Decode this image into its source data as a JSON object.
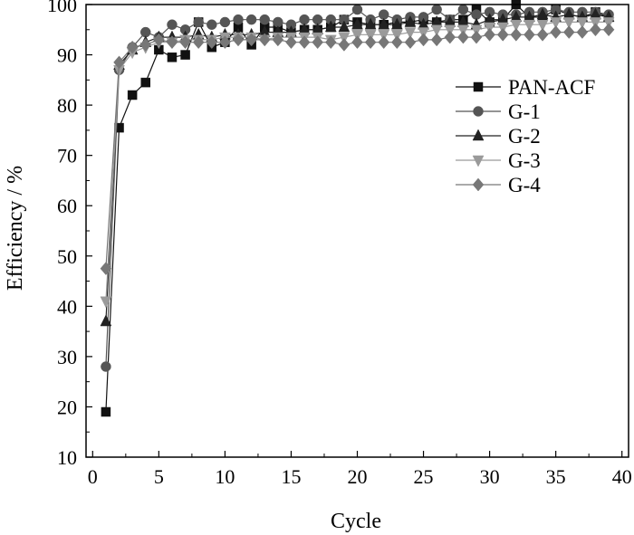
{
  "chart_data": {
    "type": "line",
    "title": "",
    "xlabel": "Cycle",
    "ylabel": "Efficiency / %",
    "xlim": [
      -0.5,
      40.5
    ],
    "ylim": [
      10,
      100
    ],
    "xticks": [
      0,
      5,
      10,
      15,
      20,
      25,
      30,
      35,
      40
    ],
    "yticks": [
      10,
      20,
      30,
      40,
      50,
      60,
      70,
      80,
      90,
      100
    ],
    "grid": false,
    "legend_position": "right",
    "x": [
      1,
      2,
      3,
      4,
      5,
      6,
      7,
      8,
      9,
      10,
      11,
      12,
      13,
      14,
      15,
      16,
      17,
      18,
      19,
      20,
      21,
      22,
      23,
      24,
      25,
      26,
      27,
      28,
      29,
      30,
      31,
      32,
      33,
      34,
      35,
      36,
      37,
      38,
      39
    ],
    "series": [
      {
        "name": "PAN-ACF",
        "marker": "square",
        "color": "#111111",
        "values": [
          19,
          75.5,
          82,
          84.5,
          91,
          89.5,
          90,
          96.5,
          91.5,
          92.5,
          95.5,
          92,
          95.5,
          95.5,
          94.5,
          95,
          95,
          95.5,
          97,
          96.5,
          96,
          96,
          96.5,
          96.5,
          97,
          96.5,
          97,
          97,
          99,
          96.5,
          97,
          100,
          97.5,
          97.5,
          99,
          98,
          97.5,
          98.5,
          97.5
        ]
      },
      {
        "name": "G-1",
        "marker": "circle",
        "color": "#555555",
        "values": [
          28,
          87,
          91.5,
          94.5,
          93.5,
          96,
          95,
          96.5,
          96,
          96.5,
          97,
          97,
          97,
          96.5,
          96,
          97,
          97,
          97,
          97,
          99,
          97,
          98,
          97,
          97.5,
          97.5,
          99,
          97,
          99,
          98,
          98.5,
          98,
          98,
          98.5,
          98.5,
          99,
          98.5,
          98.5,
          98.5,
          98
        ]
      },
      {
        "name": "G-2",
        "marker": "triangle-up",
        "color": "#222222",
        "values": [
          37,
          88,
          91,
          92.5,
          93.5,
          93.5,
          93.5,
          94,
          93.5,
          94,
          94,
          94,
          94.5,
          94.5,
          94.5,
          95,
          95,
          95.5,
          95.5,
          96,
          96,
          96,
          96,
          96.5,
          96,
          96.5,
          96.5,
          96.5,
          96,
          97,
          97,
          97.5,
          97.5,
          98,
          97.5,
          98,
          97.5,
          98,
          97.5
        ]
      },
      {
        "name": "G-3",
        "marker": "triangle-down",
        "color": "#9a9a9a",
        "values": [
          41,
          87,
          90.5,
          91.5,
          92.5,
          92.5,
          93,
          93,
          93,
          93.5,
          93.5,
          93.5,
          93,
          93.5,
          93.5,
          93.5,
          93.5,
          93,
          93.5,
          94,
          94,
          94,
          94,
          94.5,
          94.5,
          95,
          95,
          95,
          95,
          95.5,
          95.5,
          96,
          96,
          96,
          96.5,
          96.5,
          96.5,
          96.5,
          96.5
        ]
      },
      {
        "name": "G-4",
        "marker": "diamond",
        "color": "#777777",
        "values": [
          47.5,
          88.5,
          91.5,
          92,
          93,
          92.5,
          92.5,
          92.5,
          92.5,
          92.5,
          93,
          93,
          93,
          93,
          92.5,
          92.5,
          92.5,
          92.5,
          92,
          92.5,
          92.5,
          92.5,
          92.5,
          92.5,
          93,
          93,
          93.5,
          93.5,
          93.5,
          94,
          94,
          94,
          94,
          94,
          94.5,
          94.5,
          94.5,
          95,
          95
        ]
      }
    ]
  }
}
